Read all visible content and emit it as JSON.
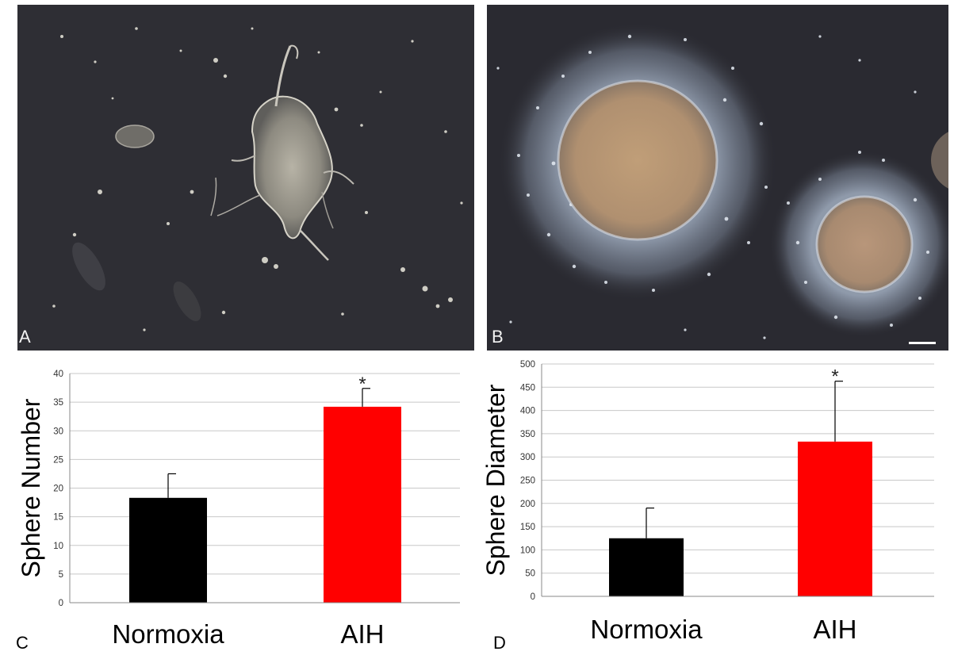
{
  "panels": {
    "a": {
      "letter": "A"
    },
    "b": {
      "letter": "B"
    },
    "c": {
      "letter": "C"
    },
    "d": {
      "letter": "D"
    }
  },
  "colors": {
    "normoxia": "#000000",
    "aih": "#ff0000",
    "gridline": "#c8c8c8",
    "photo_background": "#2a2a30"
  },
  "chart_data": [
    {
      "type": "bar",
      "panel": "C",
      "title": "",
      "xlabel": "",
      "ylabel": "Sphere Number",
      "categories": [
        "Normoxia",
        "AIH"
      ],
      "values": [
        18.3,
        34.2
      ],
      "error_plus": [
        4.2,
        3.2
      ],
      "significance": [
        "",
        "*"
      ],
      "bar_colors": [
        "#000000",
        "#ff0000"
      ],
      "ylim": [
        0,
        40
      ],
      "yticks": [
        0,
        5,
        10,
        15,
        20,
        25,
        30,
        35,
        40
      ],
      "grid": true,
      "legend": "none"
    },
    {
      "type": "bar",
      "panel": "D",
      "title": "",
      "xlabel": "",
      "ylabel": "Sphere Diameter",
      "categories": [
        "Normoxia",
        "AIH"
      ],
      "values": [
        125,
        333
      ],
      "error_plus": [
        65,
        130
      ],
      "significance": [
        "",
        "*"
      ],
      "bar_colors": [
        "#000000",
        "#ff0000"
      ],
      "ylim": [
        0,
        500
      ],
      "yticks": [
        0,
        50,
        100,
        150,
        200,
        250,
        300,
        350,
        400,
        450,
        500
      ],
      "grid": true,
      "legend": "none"
    }
  ]
}
